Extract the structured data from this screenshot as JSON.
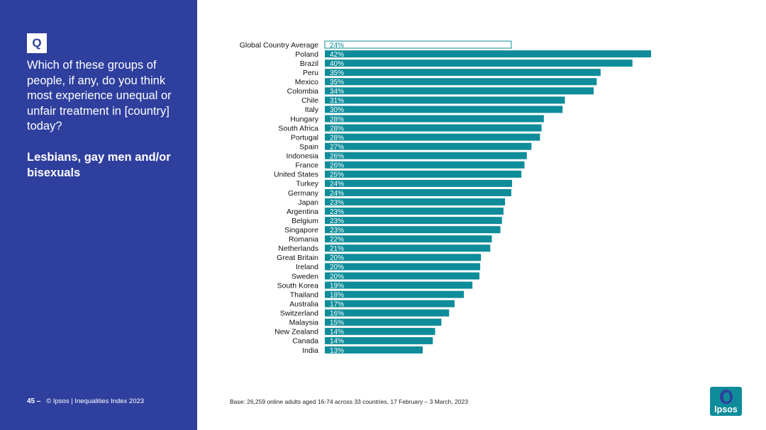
{
  "sidebar": {
    "q_badge": "Q",
    "question": "Which of these groups of people, if any, do you think most experience unequal or unfair treatment in [country] today?",
    "subject": "Lesbians, gay men and/or bisexuals",
    "page_number": "45",
    "page_sep": "–",
    "footer": "© Ipsos | Inequalities Index 2023"
  },
  "base_note": "Base: 26,259 online adults aged 16-74 across 33 countries, 17 February – 3 March, 2023",
  "logo": {
    "text": "Ipsos"
  },
  "colors": {
    "panel": "#2f3f9e",
    "bar": "#0e8c9a",
    "white": "#ffffff"
  },
  "chart_data": {
    "type": "bar",
    "orientation": "horizontal",
    "title": "Lesbians, gay men and/or bisexuals",
    "value_suffix": "%",
    "xlim": [
      0,
      42
    ],
    "highlight_first": true,
    "categories": [
      "Global Country Average",
      "Poland",
      "Brazil",
      "Peru",
      "Mexico",
      "Colombia",
      "Chile",
      "Italy",
      "Hungary",
      "South Africa",
      "Portugal",
      "Spain",
      "Indonesia",
      "France",
      "United States",
      "Turkey",
      "Germany",
      "Japan",
      "Argentina",
      "Belgium",
      "Singapore",
      "Romania",
      "Netherlands",
      "Great Britain",
      "Ireland",
      "Sweden",
      "South Korea",
      "Thailand",
      "Australia",
      "Switzerland",
      "Malaysia",
      "New Zealand",
      "Canada",
      "India"
    ],
    "values": [
      24,
      42,
      40,
      35,
      35,
      34,
      31,
      30,
      28,
      28,
      28,
      27,
      26,
      26,
      25,
      24,
      24,
      23,
      23,
      23,
      23,
      22,
      21,
      20,
      20,
      20,
      19,
      18,
      17,
      16,
      15,
      14,
      14,
      13
    ],
    "bar_lengths": [
      24,
      42,
      39.6,
      35.5,
      35,
      34.6,
      30.9,
      30.6,
      28.2,
      27.9,
      27.7,
      26.6,
      26,
      25.7,
      25.3,
      24.1,
      24,
      23.2,
      23,
      22.8,
      22.6,
      21.5,
      21.3,
      20.1,
      20,
      19.9,
      19,
      17.9,
      16.7,
      16,
      15,
      14.2,
      13.9,
      12.6
    ]
  }
}
